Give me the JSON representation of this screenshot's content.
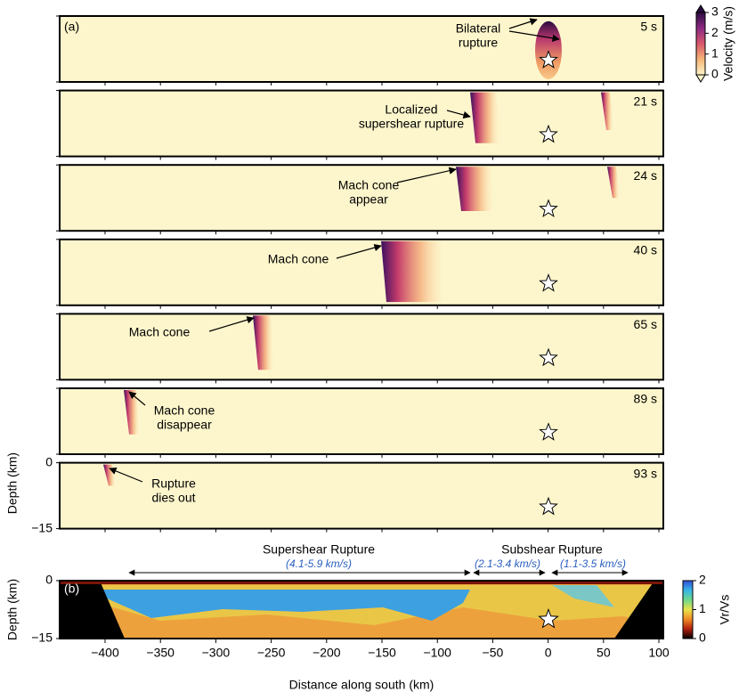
{
  "chart_data": [
    {
      "type": "snapshots",
      "panel_label": "(a)",
      "ylabel": "Depth (km)",
      "xlim": [
        -441,
        104
      ],
      "ylim": [
        -15,
        0
      ],
      "xticks": [
        -400,
        -350,
        -300,
        -250,
        -200,
        -150,
        -100,
        -50,
        0,
        50,
        100
      ],
      "yticks": [
        0,
        {
          "value": -15,
          "label": "−15"
        }
      ],
      "frames": [
        {
          "time": "5 s",
          "annotation": [
            "Bilateral",
            "rupture"
          ]
        },
        {
          "time": "21 s",
          "annotation": [
            "Localized",
            "supershear rupture"
          ]
        },
        {
          "time": "24 s",
          "annotation": [
            "Mach cone",
            "appear"
          ]
        },
        {
          "time": "40 s",
          "annotation": [
            "Mach cone"
          ]
        },
        {
          "time": "65 s",
          "annotation": [
            "Mach cone"
          ]
        },
        {
          "time": "89 s",
          "annotation": [
            "Mach cone",
            "disappear"
          ]
        },
        {
          "time": "93 s",
          "annotation": [
            "Rupture",
            "dies out"
          ]
        }
      ],
      "colorbar": {
        "label": "Velocity (m/s)",
        "lim": [
          0,
          3
        ],
        "ticks": [
          0,
          1,
          2,
          3
        ],
        "colors": [
          "#fdf4c8",
          "#f5b476",
          "#d8576b",
          "#8c2a82",
          "#2b0b3f"
        ]
      }
    },
    {
      "type": "heatmap",
      "panel_label": "(b)",
      "xlabel": "Distance along south (km)",
      "ylabel": "Depth (km)",
      "xlim": [
        -441,
        104
      ],
      "ylim": [
        -15,
        0
      ],
      "xticks": [
        {
          "value": -400,
          "label": "−400"
        },
        {
          "value": -350,
          "label": "−350"
        },
        {
          "value": -300,
          "label": "−300"
        },
        {
          "value": -250,
          "label": "−250"
        },
        {
          "value": -200,
          "label": "−200"
        },
        {
          "value": -150,
          "label": "−150"
        },
        {
          "value": -100,
          "label": "−100"
        },
        {
          "value": -50,
          "label": "−50"
        },
        0,
        50,
        100
      ],
      "yticks": [
        0,
        {
          "value": -15,
          "label": "−15"
        }
      ],
      "regimes": [
        {
          "name": "Supershear Rupture",
          "speeds": [
            "(4.1-5.9 km/s)"
          ]
        },
        {
          "name": "Subshear Rupture",
          "speeds": [
            "(2.1-3.4 km/s)",
            "(1.1-3.5 km/s)"
          ]
        }
      ],
      "colorbar": {
        "label": "Vr/Vs",
        "lim": [
          0,
          2
        ],
        "ticks": [
          0,
          1,
          2
        ],
        "colors": [
          "#000000",
          "#b3200e",
          "#f08a25",
          "#e9e34a",
          "#6ed98a",
          "#39b6e8",
          "#2f4fd8"
        ]
      }
    }
  ]
}
